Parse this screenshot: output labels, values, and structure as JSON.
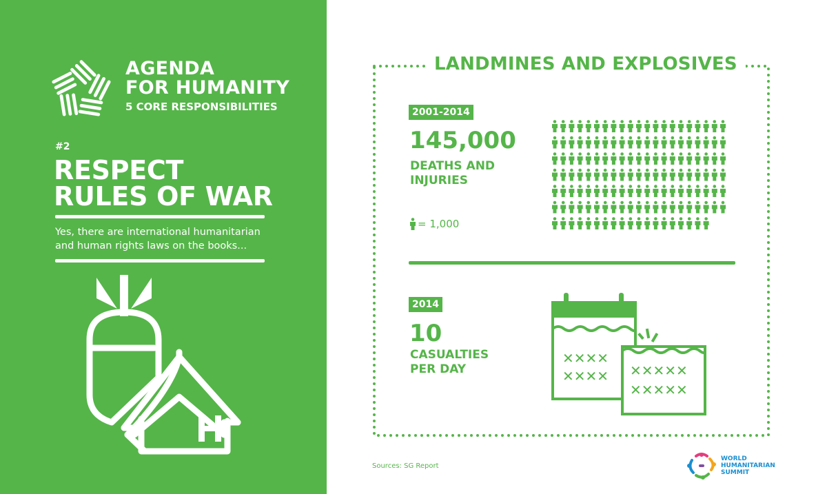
{
  "brand": {
    "title_line1": "AGENDA",
    "title_line2": "FOR HUMANITY",
    "subtitle": "5 CORE RESPONSIBILITIES",
    "logo_icon": "agenda-for-humanity-logo"
  },
  "responsibility": {
    "number": "#2",
    "headline_line1": "RESPECT",
    "headline_line2": "RULES OF WAR",
    "description": "Yes, there are international humanitarian and human rights laws on the books..."
  },
  "illustration_icon": "bomb-over-hospital-tent-icon",
  "section": {
    "title": "LANDMINES AND EXPLOSIVES"
  },
  "stat1": {
    "period": "2001-2014",
    "value": "145,000",
    "label": "DEATHS AND\nINJURIES",
    "key_value": "= 1,000",
    "icon": "person-icon",
    "icon_count": 145
  },
  "stat2": {
    "period": "2014",
    "value": "10",
    "label": "CASUALTIES\nPER DAY",
    "icon": "calendar-icon"
  },
  "footer": {
    "sources": "Sources: SG Report",
    "whs_line1": "WORLD",
    "whs_line2": "HUMANITARIAN",
    "whs_line3": "SUMMIT"
  },
  "colors": {
    "green": "#55b549",
    "white": "#ffffff",
    "whs_blue": "#1a8fd0"
  }
}
